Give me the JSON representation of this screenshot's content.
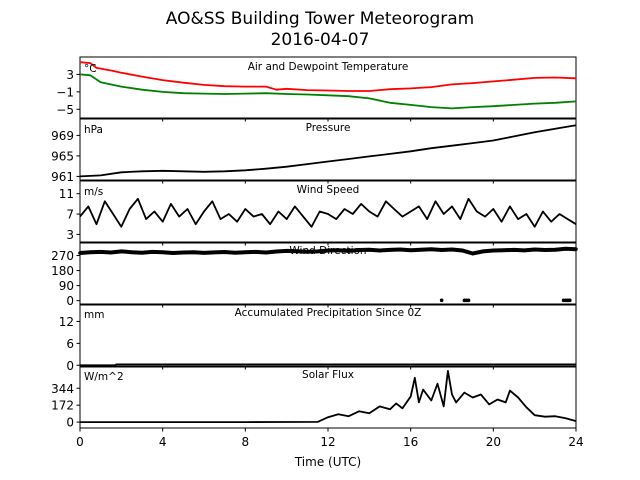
{
  "figure": {
    "title_line1": "AO&SS Building Tower Meteorogram",
    "title_line2": "2016-04-07",
    "xlabel": "Time (UTC)",
    "x_ticks": [
      0,
      4,
      8,
      12,
      16,
      20,
      24
    ],
    "x_range": [
      0,
      24
    ]
  },
  "chart_data": [
    {
      "type": "line",
      "title": "Air and Dewpoint Temperature",
      "unit": "°C",
      "ylim": [
        -7,
        7
      ],
      "y_ticks": [
        3,
        -1,
        -5
      ],
      "y_tick_labels": [
        "3",
        "−1",
        "−5"
      ],
      "series": [
        {
          "color": "#ff0000",
          "x": [
            0,
            0.5,
            0.8,
            1.5,
            2,
            3,
            4,
            5,
            6,
            7,
            8,
            9,
            9.5,
            10,
            11,
            12,
            13,
            14,
            15,
            16,
            17,
            18,
            19,
            20,
            21,
            22,
            23,
            24
          ],
          "y": [
            5.8,
            5.6,
            4.5,
            3.9,
            3.4,
            2.5,
            1.7,
            1.1,
            0.6,
            0.3,
            0.2,
            0.2,
            -0.5,
            -0.3,
            -0.6,
            -0.7,
            -0.8,
            -0.8,
            -0.4,
            -0.2,
            0.1,
            0.7,
            1.0,
            1.4,
            1.8,
            2.2,
            2.3,
            2.1
          ]
        },
        {
          "color": "#008000",
          "x": [
            0,
            0.5,
            1,
            2,
            3,
            4,
            5,
            6,
            7,
            8,
            9,
            10,
            11,
            12,
            13,
            14,
            15,
            16,
            17,
            18,
            19,
            20,
            21,
            22,
            23,
            24
          ],
          "y": [
            3.0,
            2.8,
            1.2,
            0.2,
            -0.5,
            -1.0,
            -1.3,
            -1.4,
            -1.5,
            -1.4,
            -1.3,
            -1.5,
            -1.6,
            -1.8,
            -2.0,
            -2.5,
            -3.5,
            -4.0,
            -4.5,
            -4.8,
            -4.5,
            -4.3,
            -4.0,
            -3.7,
            -3.5,
            -3.2
          ]
        }
      ]
    },
    {
      "type": "line",
      "title": "Pressure",
      "unit": "hPa",
      "ylim": [
        960.3,
        972.2
      ],
      "y_ticks": [
        961,
        965,
        969
      ],
      "series": [
        {
          "color": "#000000",
          "x": [
            0,
            1,
            2,
            3,
            4,
            5,
            6,
            7,
            8,
            9,
            10,
            11,
            12,
            13,
            14,
            15,
            16,
            17,
            18,
            19,
            20,
            21,
            22,
            23,
            24
          ],
          "y": [
            961.0,
            961.2,
            961.8,
            962.0,
            962.1,
            962.0,
            961.9,
            962.0,
            962.2,
            962.5,
            962.9,
            963.4,
            963.9,
            964.4,
            964.9,
            965.4,
            965.9,
            966.5,
            967.0,
            967.5,
            968.0,
            968.8,
            969.6,
            970.3,
            971.0
          ]
        }
      ]
    },
    {
      "type": "line",
      "title": "Wind Speed",
      "unit": "m/s",
      "ylim": [
        1.5,
        13.5
      ],
      "y_ticks": [
        3,
        7,
        11
      ],
      "series": [
        {
          "color": "#000000",
          "x": [
            0,
            0.4,
            0.8,
            1.2,
            1.6,
            2,
            2.4,
            2.8,
            3.2,
            3.6,
            4,
            4.4,
            4.8,
            5.2,
            5.6,
            6,
            6.4,
            6.8,
            7.2,
            7.6,
            8,
            8.4,
            8.8,
            9.2,
            9.6,
            10,
            10.4,
            10.8,
            11.2,
            11.6,
            12,
            12.4,
            12.8,
            13.2,
            13.6,
            14,
            14.4,
            14.8,
            15.2,
            15.6,
            16,
            16.4,
            16.8,
            17.2,
            17.6,
            18,
            18.4,
            18.8,
            19.2,
            19.6,
            20,
            20.4,
            20.8,
            21.2,
            21.6,
            22,
            22.4,
            22.8,
            23.2,
            23.6,
            24
          ],
          "y": [
            6.5,
            8.5,
            5.0,
            9.5,
            7.0,
            4.5,
            8.0,
            10.0,
            6.0,
            7.5,
            5.5,
            9.0,
            6.5,
            8.0,
            5.0,
            7.5,
            9.5,
            6.0,
            7.0,
            5.5,
            8.0,
            6.5,
            7.0,
            5.0,
            7.5,
            6.0,
            8.5,
            6.5,
            4.5,
            7.5,
            7.0,
            6.0,
            8.0,
            7.0,
            9.0,
            7.5,
            6.5,
            9.5,
            8.0,
            6.5,
            7.5,
            8.5,
            6.0,
            9.5,
            7.0,
            8.5,
            6.0,
            10.0,
            7.5,
            6.5,
            8.0,
            5.5,
            8.5,
            6.0,
            7.0,
            4.5,
            7.5,
            5.5,
            7.0,
            6.0,
            5.0
          ]
        }
      ]
    },
    {
      "type": "scatter",
      "title": "Wind Direction",
      "unit": "",
      "ylim": [
        -20,
        345
      ],
      "y_ticks": [
        0,
        90,
        180,
        270
      ],
      "series": [
        {
          "color": "#000000",
          "x": [
            0,
            0.5,
            1,
            1.5,
            2,
            2.5,
            3,
            3.5,
            4,
            4.5,
            5,
            5.5,
            6,
            6.5,
            7,
            7.5,
            8,
            8.5,
            9,
            9.5,
            10,
            10.5,
            11,
            11.5,
            12,
            12.5,
            13,
            13.5,
            14,
            14.5,
            15,
            15.5,
            16,
            16.5,
            17,
            17.5,
            18,
            18.5,
            19,
            19.5,
            20,
            20.5,
            21,
            21.5,
            22,
            22.5,
            23,
            23.5,
            24
          ],
          "y": [
            285,
            290,
            292,
            288,
            295,
            290,
            287,
            292,
            290,
            285,
            288,
            290,
            286,
            289,
            291,
            287,
            290,
            292,
            288,
            294,
            298,
            296,
            293,
            295,
            300,
            302,
            298,
            303,
            305,
            300,
            304,
            306,
            302,
            305,
            308,
            303,
            306,
            300,
            282,
            295,
            300,
            302,
            304,
            301,
            306,
            303,
            305,
            310,
            308
          ]
        },
        {
          "color": "#000000",
          "x": [
            17.5,
            18.6,
            18.7,
            18.8,
            23.4,
            23.5,
            23.6,
            23.7
          ],
          "y": [
            2,
            2,
            2,
            2,
            2,
            2,
            2,
            2
          ]
        }
      ]
    },
    {
      "type": "line",
      "title": "Accumulated Precipitation Since 0Z",
      "unit": "mm",
      "ylim": [
        -0.2,
        16.5
      ],
      "y_ticks": [
        0,
        6,
        12
      ],
      "series": [
        {
          "color": "#000000",
          "x": [
            0,
            1.7,
            1.75,
            24
          ],
          "y": [
            0,
            0,
            0.25,
            0.25
          ]
        }
      ]
    },
    {
      "type": "line",
      "title": "Solar Flux",
      "unit": "W/m^2",
      "ylim": [
        -60,
        560
      ],
      "y_ticks": [
        0,
        172,
        344
      ],
      "series": [
        {
          "color": "#000000",
          "x": [
            0,
            4,
            8,
            11.5,
            12,
            12.5,
            13,
            13.5,
            14,
            14.5,
            15,
            15.3,
            15.6,
            16,
            16.2,
            16.4,
            16.6,
            17,
            17.3,
            17.6,
            17.8,
            18,
            18.2,
            18.6,
            19,
            19.4,
            19.8,
            20.2,
            20.6,
            20.8,
            21.2,
            21.6,
            22,
            22.5,
            23,
            23.5,
            24
          ],
          "y": [
            0,
            0,
            0,
            2,
            50,
            80,
            60,
            110,
            90,
            160,
            130,
            190,
            140,
            260,
            450,
            200,
            330,
            220,
            390,
            160,
            520,
            280,
            200,
            300,
            250,
            280,
            180,
            230,
            200,
            320,
            250,
            150,
            70,
            55,
            60,
            40,
            10
          ]
        }
      ]
    }
  ]
}
